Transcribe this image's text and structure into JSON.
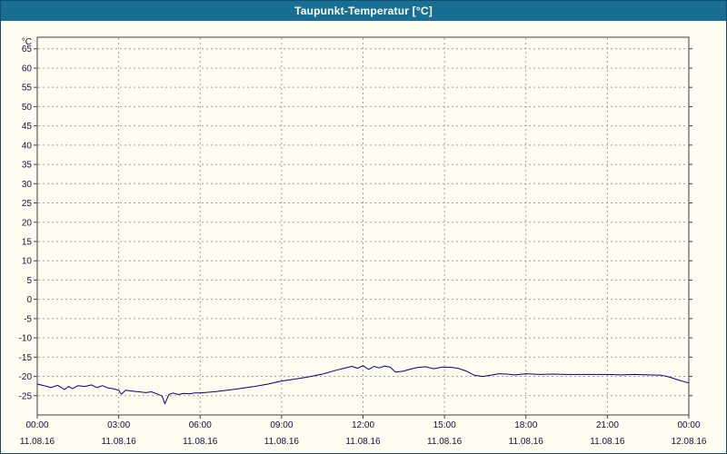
{
  "window": {
    "title": "Taupunkt-Temperatur [°C]"
  },
  "colors": {
    "window_border": "#164a6e",
    "title_bar_bg": "#186f94",
    "title_text": "#ffffff",
    "background": "#fffdf0",
    "plot_border": "#3c3c55",
    "grid": "#a0a0a0",
    "line": "#000080",
    "tick_text": "#10103c"
  },
  "chart_data": {
    "type": "line",
    "title": "Taupunkt-Temperatur [°C]",
    "xlabel": "",
    "ylabel": "°C",
    "unit_label": "°C",
    "xlim": [
      0,
      24
    ],
    "ylim": [
      -30,
      68
    ],
    "grid": "dashed",
    "legend": "none",
    "y_ticks": [
      65,
      60,
      55,
      50,
      45,
      40,
      35,
      30,
      25,
      20,
      15,
      10,
      5,
      0,
      -5,
      -10,
      -15,
      -20,
      -25
    ],
    "x_ticks": [
      {
        "t": 0,
        "time": "00:00",
        "date": "11.08.16"
      },
      {
        "t": 3,
        "time": "03:00",
        "date": "11.08.16"
      },
      {
        "t": 6,
        "time": "06:00",
        "date": "11.08.16"
      },
      {
        "t": 9,
        "time": "09:00",
        "date": "11.08.16"
      },
      {
        "t": 12,
        "time": "12:00",
        "date": "11.08.16"
      },
      {
        "t": 15,
        "time": "15:00",
        "date": "11.08.16"
      },
      {
        "t": 18,
        "time": "18:00",
        "date": "11.08.16"
      },
      {
        "t": 21,
        "time": "21:00",
        "date": "11.08.16"
      },
      {
        "t": 24,
        "time": "00:00",
        "date": "12.08.16"
      }
    ],
    "series": [
      {
        "name": "Taupunkt-Temperatur",
        "color": "#000080",
        "points": [
          [
            0,
            -22.0
          ],
          [
            0.25,
            -22.4
          ],
          [
            0.5,
            -22.9
          ],
          [
            0.75,
            -22.3
          ],
          [
            1.0,
            -23.4
          ],
          [
            1.15,
            -22.6
          ],
          [
            1.3,
            -23.2
          ],
          [
            1.5,
            -22.4
          ],
          [
            1.75,
            -22.6
          ],
          [
            2.0,
            -22.2
          ],
          [
            2.2,
            -22.9
          ],
          [
            2.4,
            -22.4
          ],
          [
            2.6,
            -23.0
          ],
          [
            2.8,
            -23.2
          ],
          [
            3.0,
            -23.6
          ],
          [
            3.1,
            -24.6
          ],
          [
            3.25,
            -23.6
          ],
          [
            3.5,
            -23.8
          ],
          [
            3.75,
            -24.0
          ],
          [
            4.0,
            -24.2
          ],
          [
            4.2,
            -24.0
          ],
          [
            4.4,
            -24.5
          ],
          [
            4.6,
            -25.1
          ],
          [
            4.7,
            -27.1
          ],
          [
            4.85,
            -24.7
          ],
          [
            5.0,
            -24.3
          ],
          [
            5.2,
            -24.7
          ],
          [
            5.4,
            -24.4
          ],
          [
            5.6,
            -24.5
          ],
          [
            5.8,
            -24.3
          ],
          [
            6.0,
            -24.3
          ],
          [
            6.5,
            -24.0
          ],
          [
            7.0,
            -23.6
          ],
          [
            7.5,
            -23.1
          ],
          [
            8.0,
            -22.6
          ],
          [
            8.5,
            -22.0
          ],
          [
            9.0,
            -21.2
          ],
          [
            9.5,
            -20.7
          ],
          [
            10.0,
            -20.1
          ],
          [
            10.5,
            -19.4
          ],
          [
            11.0,
            -18.4
          ],
          [
            11.3,
            -17.9
          ],
          [
            11.6,
            -17.4
          ],
          [
            11.8,
            -17.9
          ],
          [
            12.0,
            -17.2
          ],
          [
            12.2,
            -18.2
          ],
          [
            12.4,
            -17.4
          ],
          [
            12.6,
            -17.8
          ],
          [
            12.8,
            -17.3
          ],
          [
            13.0,
            -17.6
          ],
          [
            13.2,
            -18.9
          ],
          [
            13.5,
            -18.6
          ],
          [
            13.8,
            -18.0
          ],
          [
            14.0,
            -17.7
          ],
          [
            14.3,
            -17.5
          ],
          [
            14.6,
            -18.0
          ],
          [
            14.9,
            -17.6
          ],
          [
            15.2,
            -17.6
          ],
          [
            15.5,
            -17.9
          ],
          [
            15.8,
            -18.6
          ],
          [
            16.1,
            -19.7
          ],
          [
            16.4,
            -20.0
          ],
          [
            16.7,
            -19.7
          ],
          [
            17.0,
            -19.3
          ],
          [
            17.3,
            -19.4
          ],
          [
            17.6,
            -19.6
          ],
          [
            18.0,
            -19.3
          ],
          [
            18.5,
            -19.5
          ],
          [
            19.0,
            -19.4
          ],
          [
            19.5,
            -19.5
          ],
          [
            20.0,
            -19.5
          ],
          [
            20.5,
            -19.5
          ],
          [
            21.0,
            -19.5
          ],
          [
            21.5,
            -19.6
          ],
          [
            22.0,
            -19.5
          ],
          [
            22.5,
            -19.6
          ],
          [
            23.0,
            -19.7
          ],
          [
            23.3,
            -20.2
          ],
          [
            23.6,
            -20.9
          ],
          [
            24.0,
            -21.7
          ]
        ]
      }
    ]
  }
}
